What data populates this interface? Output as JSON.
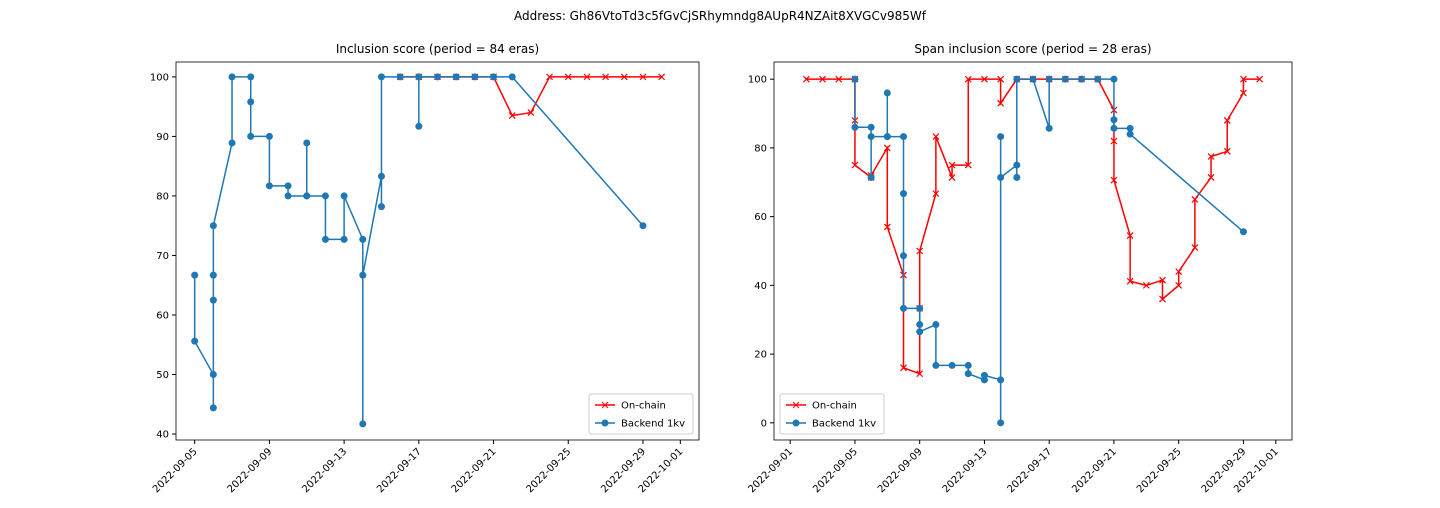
{
  "title": "Address: Gh86VtoTd3c5fGvCjSRhymndg8AUpR4NZAit8XVGCv985Wf",
  "chart_data": [
    {
      "type": "line",
      "title": "Inclusion score (period = 84 eras)",
      "legend": "lower right",
      "xlim": [
        "2022-09-04",
        "2022-10-02"
      ],
      "xticks": [
        "2022-09-05",
        "2022-09-09",
        "2022-09-13",
        "2022-09-17",
        "2022-09-21",
        "2022-09-25",
        "2022-09-29",
        "2022-10-01"
      ],
      "ylim": [
        39,
        102.5
      ],
      "yticks": [
        40,
        50,
        60,
        70,
        80,
        90,
        100
      ],
      "series": [
        {
          "name": "On-chain",
          "color": "#ff0000",
          "marker": "x",
          "x": [
            "2022-09-16",
            "2022-09-17",
            "2022-09-18",
            "2022-09-19",
            "2022-09-20",
            "2022-09-21",
            "2022-09-22",
            "2022-09-23",
            "2022-09-24",
            "2022-09-25",
            "2022-09-26",
            "2022-09-27",
            "2022-09-28",
            "2022-09-29",
            "2022-09-30"
          ],
          "values": [
            100,
            100,
            100,
            100,
            100,
            100,
            93.5,
            94,
            100,
            100,
            100,
            100,
            100,
            100,
            100
          ]
        },
        {
          "name": "Backend 1kv",
          "color": "#1f77b4",
          "marker": "o",
          "x": [
            "2022-09-05",
            "2022-09-05",
            "2022-09-06",
            "2022-09-06",
            "2022-09-06",
            "2022-09-06",
            "2022-09-06",
            "2022-09-07",
            "2022-09-07",
            "2022-09-08",
            "2022-09-08",
            "2022-09-08",
            "2022-09-09",
            "2022-09-09",
            "2022-09-10",
            "2022-09-10",
            "2022-09-11",
            "2022-09-11",
            "2022-09-11",
            "2022-09-12",
            "2022-09-12",
            "2022-09-13",
            "2022-09-13",
            "2022-09-14",
            "2022-09-14",
            "2022-09-14",
            "2022-09-15",
            "2022-09-15",
            "2022-09-15",
            "2022-09-16",
            "2022-09-17",
            "2022-09-17",
            "2022-09-17",
            "2022-09-18",
            "2022-09-19",
            "2022-09-20",
            "2022-09-21",
            "2022-09-22",
            "2022-09-29"
          ],
          "values": [
            66.7,
            55.6,
            50,
            44.4,
            66.7,
            62.5,
            75,
            88.9,
            100,
            100,
            95.8,
            90,
            90,
            81.7,
            81.7,
            80,
            80,
            88.9,
            80,
            80,
            72.7,
            72.7,
            80,
            72.7,
            41.7,
            66.7,
            83.3,
            78.2,
            100,
            100,
            100,
            91.7,
            100,
            100,
            100,
            100,
            100,
            100,
            75
          ]
        }
      ]
    },
    {
      "type": "line",
      "title": "Span inclusion score (period = 28 eras)",
      "legend": "lower left",
      "xlim": [
        "2022-08-31",
        "2022-10-02"
      ],
      "xticks": [
        "2022-09-01",
        "2022-09-05",
        "2022-09-09",
        "2022-09-13",
        "2022-09-17",
        "2022-09-21",
        "2022-09-25",
        "2022-09-29",
        "2022-10-01"
      ],
      "ylim": [
        -5,
        105
      ],
      "yticks": [
        0,
        20,
        40,
        60,
        80,
        100
      ],
      "series": [
        {
          "name": "On-chain",
          "color": "#ff0000",
          "marker": "x",
          "x": [
            "2022-09-02",
            "2022-09-03",
            "2022-09-04",
            "2022-09-05",
            "2022-09-05",
            "2022-09-05",
            "2022-09-06",
            "2022-09-06",
            "2022-09-07",
            "2022-09-07",
            "2022-09-08",
            "2022-09-08",
            "2022-09-09",
            "2022-09-09",
            "2022-09-09",
            "2022-09-10",
            "2022-09-10",
            "2022-09-11",
            "2022-09-11",
            "2022-09-12",
            "2022-09-12",
            "2022-09-13",
            "2022-09-14",
            "2022-09-14",
            "2022-09-15",
            "2022-09-16",
            "2022-09-17",
            "2022-09-18",
            "2022-09-19",
            "2022-09-20",
            "2022-09-21",
            "2022-09-21",
            "2022-09-21",
            "2022-09-22",
            "2022-09-22",
            "2022-09-23",
            "2022-09-24",
            "2022-09-24",
            "2022-09-25",
            "2022-09-25",
            "2022-09-26",
            "2022-09-26",
            "2022-09-27",
            "2022-09-27",
            "2022-09-28",
            "2022-09-28",
            "2022-09-29",
            "2022-09-29",
            "2022-09-30"
          ],
          "values": [
            100,
            100,
            100,
            100,
            88,
            75,
            71.4,
            72,
            80,
            57,
            43,
            16,
            14.3,
            33.3,
            50,
            66.7,
            83.3,
            71.4,
            75,
            75,
            100,
            100,
            100,
            93,
            100,
            100,
            100,
            100,
            100,
            100,
            91,
            82,
            70.6,
            54.5,
            41.2,
            40,
            41.5,
            36,
            40,
            44,
            51,
            65,
            71.4,
            77.5,
            79,
            88,
            96,
            100,
            100
          ]
        },
        {
          "name": "Backend 1kv",
          "color": "#1f77b4",
          "marker": "o",
          "x": [
            "2022-09-05",
            "2022-09-05",
            "2022-09-06",
            "2022-09-06",
            "2022-09-06",
            "2022-09-07",
            "2022-09-07",
            "2022-09-07",
            "2022-09-08",
            "2022-09-08",
            "2022-09-08",
            "2022-09-08",
            "2022-09-09",
            "2022-09-09",
            "2022-09-09",
            "2022-09-10",
            "2022-09-10",
            "2022-09-11",
            "2022-09-12",
            "2022-09-12",
            "2022-09-13",
            "2022-09-13",
            "2022-09-14",
            "2022-09-14",
            "2022-09-14",
            "2022-09-14",
            "2022-09-15",
            "2022-09-15",
            "2022-09-15",
            "2022-09-16",
            "2022-09-17",
            "2022-09-17",
            "2022-09-18",
            "2022-09-19",
            "2022-09-20",
            "2022-09-21",
            "2022-09-21",
            "2022-09-21",
            "2022-09-22",
            "2022-09-22",
            "2022-09-29"
          ],
          "values": [
            100,
            86,
            86,
            71.4,
            83.3,
            83.3,
            96,
            83.3,
            83.3,
            66.7,
            48.6,
            33.3,
            33.3,
            28.6,
            26.5,
            28.6,
            16.7,
            16.7,
            16.7,
            14.3,
            12.5,
            13.8,
            12.5,
            0,
            83.3,
            71.4,
            75,
            71.4,
            100,
            100,
            85.7,
            100,
            100,
            100,
            100,
            100,
            88.2,
            85.7,
            85.7,
            84,
            55.6
          ]
        }
      ]
    }
  ]
}
